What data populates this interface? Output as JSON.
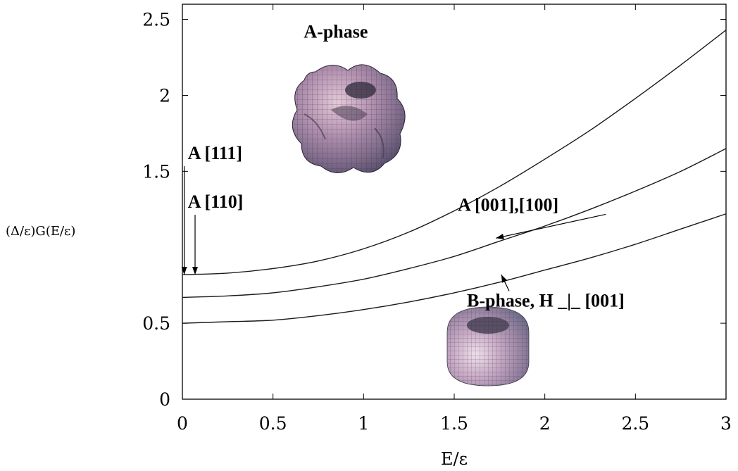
{
  "chart_data": {
    "type": "line",
    "xlabel": "E/ε",
    "ylabel": "(Δ/ε)G(E/ε)",
    "xlim": [
      0,
      3
    ],
    "ylim": [
      0,
      2.6
    ],
    "xticks": [
      "0",
      "0.5",
      "1",
      "1.5",
      "2",
      "2.5",
      "3"
    ],
    "yticks": [
      "0",
      "0.5",
      "1.5",
      "2",
      "2.5"
    ],
    "xtick_values": [
      0,
      0.5,
      1,
      1.5,
      2,
      2.5,
      3
    ],
    "ytick_values": [
      0,
      0.5,
      1.5,
      2,
      2.5
    ],
    "series": [
      {
        "x": [
          0,
          0.25,
          0.5,
          0.75,
          1,
          1.25,
          1.5,
          1.75,
          2,
          2.25,
          2.5,
          2.75,
          3
        ],
        "y": [
          0.82,
          0.83,
          0.86,
          0.91,
          0.99,
          1.1,
          1.24,
          1.4,
          1.58,
          1.77,
          1.98,
          2.2,
          2.43
        ]
      },
      {
        "x": [
          0,
          0.25,
          0.5,
          0.75,
          1,
          1.25,
          1.5,
          1.75,
          2,
          2.25,
          2.5,
          2.75,
          3
        ],
        "y": [
          0.67,
          0.68,
          0.7,
          0.74,
          0.79,
          0.86,
          0.94,
          1.04,
          1.14,
          1.25,
          1.37,
          1.5,
          1.65
        ]
      },
      {
        "x": [
          0,
          0.25,
          0.5,
          0.75,
          1,
          1.25,
          1.5,
          1.75,
          2,
          2.25,
          2.5,
          2.75,
          3
        ],
        "y": [
          0.5,
          0.51,
          0.52,
          0.55,
          0.59,
          0.64,
          0.7,
          0.77,
          0.85,
          0.93,
          1.02,
          1.12,
          1.22
        ]
      }
    ],
    "annotations": [
      {
        "text": "A-phase",
        "x": 0.67,
        "y": 2.38
      },
      {
        "text": "A [111]",
        "x": 0.03,
        "y": 1.58,
        "arrow_to": [
          0.01,
          0.82
        ]
      },
      {
        "text": "A [110]",
        "x": 0.03,
        "y": 1.26,
        "arrow_to": [
          0.07,
          0.82
        ]
      },
      {
        "text": "A [001],[100]",
        "x": 1.52,
        "y": 1.24,
        "arrow_to": [
          1.73,
          1.06
        ]
      },
      {
        "text": "B-phase, H _|_ [001]",
        "x": 1.57,
        "y": 0.61,
        "arrow_to": [
          1.76,
          0.82
        ]
      }
    ],
    "grid": false,
    "legend": "none"
  },
  "insets": [
    {
      "name": "a-phase-surface",
      "description": "3D surface plot of A-phase gap"
    },
    {
      "name": "b-phase-surface",
      "description": "3D surface plot of B-phase gap"
    }
  ]
}
